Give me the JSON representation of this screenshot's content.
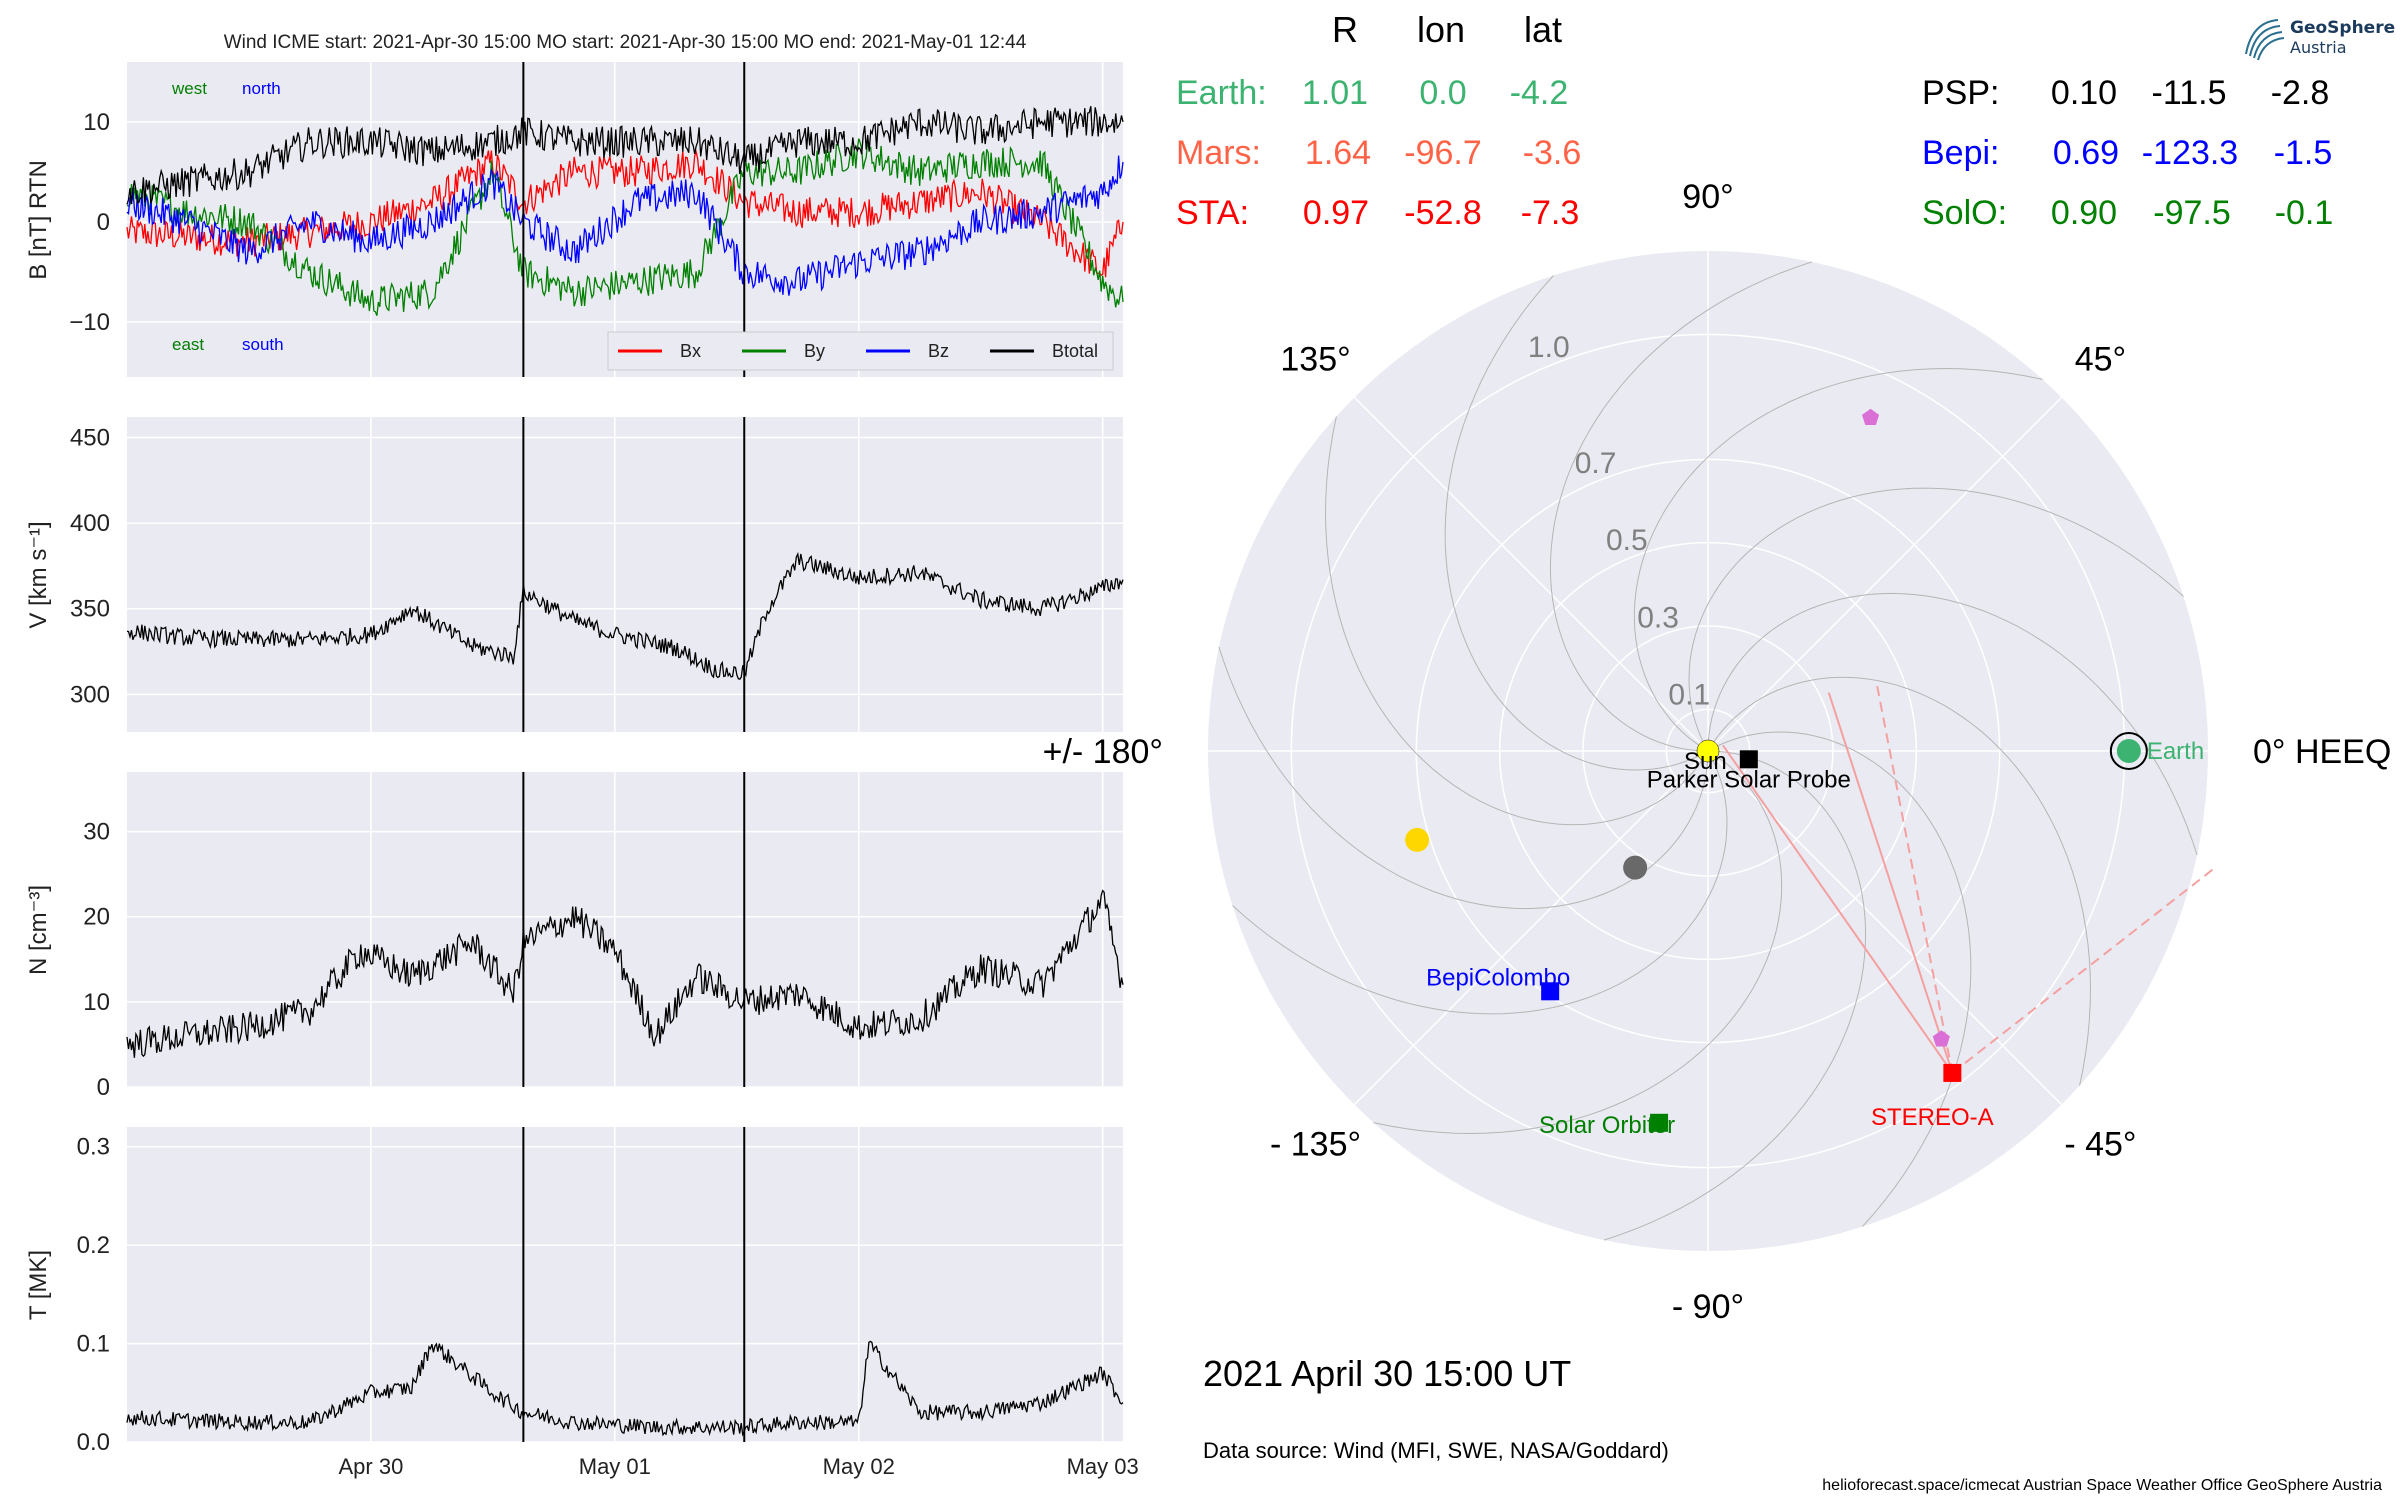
{
  "chart_data": [
    {
      "type": "line",
      "panel": "magnetic field",
      "title": "Wind    ICME start: 2021-Apr-30 15:00   MO start: 2021-Apr-30 15:00   MO end: 2021-May-01 12:44",
      "ylabel": "B [nT] RTN",
      "ylim": [
        -15.5,
        16
      ],
      "yticks": [
        10,
        0,
        -10
      ],
      "ytick_labels": [
        "10",
        "0",
        "−10"
      ],
      "x_start": "2021-04-29 00:00",
      "x_end": "2021-05-03 02:00",
      "x_ticks": [
        "2021-04-30",
        "2021-05-01",
        "2021-05-02",
        "2021-05-03"
      ],
      "x_tick_labels": [
        "Apr 30",
        "May 01",
        "May 02",
        "May 03"
      ],
      "event_lines": [
        "2021-04-30 15:00",
        "2021-05-01 12:44"
      ],
      "corner_labels": {
        "top_left_a": "west",
        "top_left_b": "north",
        "bottom_left_a": "east",
        "bottom_left_b": "south"
      },
      "legend_placement": "lower-right",
      "series": [
        {
          "name": "Bx",
          "color": "#ff0000",
          "x": [
            "2021-04-29 00:00",
            "2021-04-29 06:00",
            "2021-04-29 12:00",
            "2021-04-29 18:00",
            "2021-04-30 00:00",
            "2021-04-30 06:00",
            "2021-04-30 12:00",
            "2021-04-30 15:00",
            "2021-04-30 20:00",
            "2021-05-01 02:00",
            "2021-05-01 08:00",
            "2021-05-01 12:44",
            "2021-05-01 18:00",
            "2021-05-02 00:00",
            "2021-05-02 06:00",
            "2021-05-02 12:00",
            "2021-05-02 18:00",
            "2021-05-03 00:00",
            "2021-05-03 02:00"
          ],
          "y": [
            -1,
            -1.5,
            -2,
            -1,
            0,
            2,
            6,
            2,
            5,
            5,
            6,
            2,
            1,
            1,
            2,
            3,
            0,
            -5,
            0
          ]
        },
        {
          "name": "By",
          "color": "#008000",
          "x": [
            "2021-04-29 00:00",
            "2021-04-29 06:00",
            "2021-04-29 12:00",
            "2021-04-29 18:00",
            "2021-04-30 00:00",
            "2021-04-30 06:00",
            "2021-04-30 12:00",
            "2021-04-30 15:00",
            "2021-04-30 20:00",
            "2021-05-01 02:00",
            "2021-05-01 08:00",
            "2021-05-01 12:44",
            "2021-05-01 18:00",
            "2021-05-02 00:00",
            "2021-05-02 06:00",
            "2021-05-02 12:00",
            "2021-05-02 18:00",
            "2021-05-03 00:00",
            "2021-05-03 02:00"
          ],
          "y": [
            3,
            1,
            0,
            -5,
            -8,
            -7,
            5,
            -5,
            -7,
            -6,
            -5,
            5,
            5,
            7,
            5,
            6,
            6,
            -6,
            -8
          ]
        },
        {
          "name": "Bz",
          "color": "#0000ff",
          "x": [
            "2021-04-29 00:00",
            "2021-04-29 06:00",
            "2021-04-29 12:00",
            "2021-04-29 18:00",
            "2021-04-30 00:00",
            "2021-04-30 06:00",
            "2021-04-30 12:00",
            "2021-04-30 15:00",
            "2021-04-30 20:00",
            "2021-05-01 02:00",
            "2021-05-01 08:00",
            "2021-05-01 12:44",
            "2021-05-01 18:00",
            "2021-05-02 00:00",
            "2021-05-02 06:00",
            "2021-05-02 12:00",
            "2021-05-02 18:00",
            "2021-05-03 00:00",
            "2021-05-03 02:00"
          ],
          "y": [
            2,
            0,
            -3,
            0,
            -2,
            0,
            4,
            0,
            -3,
            2,
            3,
            -5,
            -6,
            -4,
            -3,
            0,
            1,
            3,
            6
          ]
        },
        {
          "name": "Btotal",
          "color": "#000000",
          "x": [
            "2021-04-29 00:00",
            "2021-04-29 06:00",
            "2021-04-29 12:00",
            "2021-04-29 18:00",
            "2021-04-30 00:00",
            "2021-04-30 06:00",
            "2021-04-30 12:00",
            "2021-04-30 15:00",
            "2021-04-30 20:00",
            "2021-05-01 02:00",
            "2021-05-01 08:00",
            "2021-05-01 12:44",
            "2021-05-01 18:00",
            "2021-05-02 00:00",
            "2021-05-02 06:00",
            "2021-05-02 12:00",
            "2021-05-02 18:00",
            "2021-05-03 00:00",
            "2021-05-03 02:00"
          ],
          "y": [
            3,
            4,
            5,
            8,
            8,
            7,
            8,
            9,
            8,
            8,
            8,
            6,
            8,
            8,
            10,
            9,
            10,
            10,
            10
          ]
        }
      ]
    },
    {
      "type": "line",
      "panel": "speed",
      "ylabel": "V [km s⁻¹]",
      "ylim": [
        278,
        462
      ],
      "yticks": [
        450,
        400,
        350,
        300
      ],
      "ytick_labels": [
        "450",
        "400",
        "350",
        "300"
      ],
      "series": [
        {
          "name": "",
          "color": "#000000",
          "x": [
            "2021-04-29 00:00",
            "2021-04-29 06:00",
            "2021-04-29 12:00",
            "2021-04-29 18:00",
            "2021-04-30 00:00",
            "2021-04-30 04:00",
            "2021-04-30 10:00",
            "2021-04-30 14:00",
            "2021-04-30 15:00",
            "2021-04-30 20:00",
            "2021-05-01 00:00",
            "2021-05-01 06:00",
            "2021-05-01 10:00",
            "2021-05-01 12:44",
            "2021-05-01 15:00",
            "2021-05-01 18:00",
            "2021-05-02 00:00",
            "2021-05-02 06:00",
            "2021-05-02 12:00",
            "2021-05-02 18:00",
            "2021-05-03 00:00",
            "2021-05-03 02:00"
          ],
          "y": [
            337,
            333,
            332,
            332,
            335,
            350,
            328,
            322,
            360,
            343,
            335,
            327,
            314,
            312,
            350,
            378,
            368,
            371,
            355,
            350,
            362,
            367
          ]
        }
      ]
    },
    {
      "type": "line",
      "panel": "density",
      "ylabel": "N [cm⁻³]",
      "ylim": [
        0,
        37
      ],
      "yticks": [
        30,
        20,
        10,
        0
      ],
      "ytick_labels": [
        "30",
        "20",
        "10",
        "0"
      ],
      "series": [
        {
          "name": "",
          "color": "#000000",
          "x": [
            "2021-04-29 00:00",
            "2021-04-29 06:00",
            "2021-04-29 12:00",
            "2021-04-29 18:00",
            "2021-04-29 23:00",
            "2021-04-30 04:00",
            "2021-04-30 10:00",
            "2021-04-30 14:00",
            "2021-04-30 15:00",
            "2021-04-30 20:00",
            "2021-05-01 00:00",
            "2021-05-01 04:00",
            "2021-05-01 08:00",
            "2021-05-01 12:44",
            "2021-05-01 18:00",
            "2021-05-02 00:00",
            "2021-05-02 06:00",
            "2021-05-02 12:00",
            "2021-05-02 18:00",
            "2021-05-03 00:00",
            "2021-05-03 02:00"
          ],
          "y": [
            5,
            6,
            7,
            9,
            16,
            13,
            17,
            11,
            17,
            20,
            16,
            6,
            13,
            10,
            11,
            7,
            8,
            14,
            12,
            22,
            12
          ]
        }
      ]
    },
    {
      "type": "line",
      "panel": "temperature",
      "ylabel": "T [MK]",
      "ylim": [
        0,
        0.32
      ],
      "yticks": [
        0.3,
        0.2,
        0.1,
        0.0
      ],
      "ytick_labels": [
        "0.3",
        "0.2",
        "0.1",
        "0.0"
      ],
      "series": [
        {
          "name": "",
          "color": "#000000",
          "x": [
            "2021-04-29 00:00",
            "2021-04-29 06:00",
            "2021-04-29 12:00",
            "2021-04-29 18:00",
            "2021-04-30 00:00",
            "2021-04-30 04:00",
            "2021-04-30 06:00",
            "2021-04-30 12:00",
            "2021-04-30 15:00",
            "2021-04-30 20:00",
            "2021-05-01 04:00",
            "2021-05-01 12:44",
            "2021-05-01 18:00",
            "2021-05-02 00:00",
            "2021-05-02 01:00",
            "2021-05-02 06:00",
            "2021-05-02 12:00",
            "2021-05-02 18:00",
            "2021-05-03 00:00",
            "2021-05-03 02:00"
          ],
          "y": [
            0.025,
            0.022,
            0.02,
            0.02,
            0.05,
            0.055,
            0.1,
            0.05,
            0.03,
            0.02,
            0.015,
            0.015,
            0.02,
            0.02,
            0.1,
            0.03,
            0.03,
            0.04,
            0.07,
            0.04
          ]
        }
      ]
    },
    {
      "type": "scatter",
      "panel": "polar position plot (HEEQ)",
      "angle_tick_labels": [
        {
          "label": "0° HEEQ",
          "deg": 0
        },
        {
          "label": "45°",
          "deg": 45
        },
        {
          "label": "90°",
          "deg": 90
        },
        {
          "label": "135°",
          "deg": 135
        },
        {
          "label": "+/- 180°",
          "deg": 180
        },
        {
          "label": "- 135°",
          "deg": -135
        },
        {
          "label": "- 90°",
          "deg": -90
        },
        {
          "label": "- 45°",
          "deg": -45
        }
      ],
      "r_ticks": [
        0.1,
        0.3,
        0.5,
        0.7,
        1.0
      ],
      "r_tick_labels": [
        "0.1",
        "0.3",
        "0.5",
        "0.7",
        "1.0"
      ],
      "r_max": 1.2,
      "points": [
        {
          "name": "Sun",
          "r": 0.0,
          "lon_deg": 0,
          "marker": "circle",
          "color": "#ffff00"
        },
        {
          "name": "Parker Solar Probe",
          "r": 0.1,
          "lon_deg": -11.5,
          "marker": "square",
          "color": "#000000"
        },
        {
          "name": "Earth",
          "r": 1.01,
          "lon_deg": 0.0,
          "marker": "circle",
          "color": "#3cb371"
        },
        {
          "name": "STEREO-A",
          "r": 0.97,
          "lon_deg": -52.8,
          "marker": "square",
          "color": "#ff0000"
        },
        {
          "name": "BepiColombo",
          "r": 0.69,
          "lon_deg": -123.3,
          "marker": "square",
          "color": "#0000ff"
        },
        {
          "name": "Solar Orbiter",
          "r": 0.9,
          "lon_deg": -97.5,
          "marker": "square",
          "color": "#008000"
        },
        {
          "name": "",
          "r": 0.89,
          "lon_deg": 64,
          "marker": "pentagon",
          "color": "#da70d6"
        },
        {
          "name": "",
          "r": 0.89,
          "lon_deg": -51,
          "marker": "pentagon",
          "color": "#da70d6"
        },
        {
          "name": "",
          "r": 0.73,
          "lon_deg": -163,
          "marker": "circle",
          "color": "#ffd700"
        },
        {
          "name": "",
          "r": 0.33,
          "lon_deg": -122,
          "marker": "circle",
          "color": "#696969"
        }
      ],
      "fov_lines": [
        {
          "from": "STEREO-A",
          "to_deg_dir": 108,
          "style": "solid",
          "color": "#f4a0a0"
        },
        {
          "from": "STEREO-A",
          "to_deg_dir": 125,
          "style": "solid",
          "color": "#f4a0a0"
        },
        {
          "from": "STEREO-A",
          "to_deg_dir": 101,
          "style": "dashed",
          "color": "#f4a0a0"
        },
        {
          "from": "STEREO-A",
          "to_deg_dir": 38,
          "style": "dashed",
          "color": "#f4a0a0"
        }
      ]
    }
  ],
  "position_table": {
    "headers": [
      "R",
      "lon",
      "lat"
    ],
    "rows_left": [
      {
        "name": "Earth:",
        "R": "1.01",
        "lon": "0.0",
        "lat": "-4.2",
        "color": "#3cb371"
      },
      {
        "name": "Mars:",
        "R": "1.64",
        "lon": "-96.7",
        "lat": "-3.6",
        "color": "#ff6347"
      },
      {
        "name": "STA:",
        "R": "0.97",
        "lon": "-52.8",
        "lat": "-7.3",
        "color": "#ff0000"
      }
    ],
    "rows_right": [
      {
        "name": "PSP:",
        "R": "0.10",
        "lon": "-11.5",
        "lat": "-2.8",
        "color": "#000000"
      },
      {
        "name": "Bepi:",
        "R": "0.69",
        "lon": "-123.3",
        "lat": "-1.5",
        "color": "#0000ff"
      },
      {
        "name": "SolO:",
        "R": "0.90",
        "lon": "-97.5",
        "lat": "-0.1",
        "color": "#008000"
      }
    ]
  },
  "date_label": "2021 April 30  15:00 UT",
  "data_source": "Data source: Wind (MFI, SWE, NASA/Goddard)",
  "footer": "helioforecast.space/icmecat   Austrian Space Weather Office   GeoSphere Austria",
  "logo": {
    "line1": "GeoSphere",
    "line2": "Austria"
  },
  "colors": {
    "panel_bg": "#eaeaf2",
    "grid": "#ffffff"
  }
}
